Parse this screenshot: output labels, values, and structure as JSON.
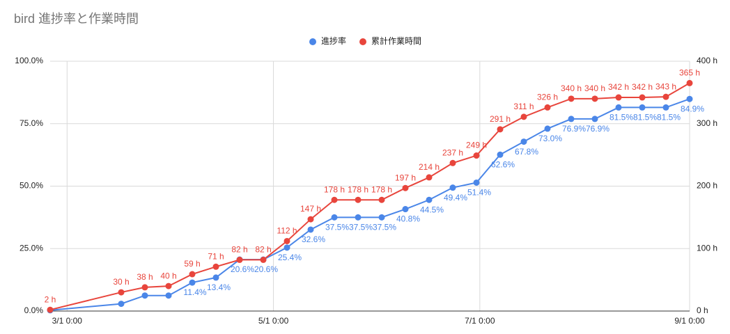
{
  "chart_data": {
    "type": "line",
    "title": "bird 進捗率と作業時間",
    "x": [
      "2/24",
      "3/17",
      "3/24",
      "3/31",
      "4/7",
      "4/14",
      "4/21",
      "4/28",
      "5/5",
      "5/12",
      "5/19",
      "5/26",
      "6/2",
      "6/9",
      "6/16",
      "6/23",
      "6/30",
      "7/7",
      "7/14",
      "7/21",
      "7/28",
      "8/4",
      "8/11",
      "8/18",
      "8/25",
      "9/1"
    ],
    "xlim": [
      "2/24",
      "9/1"
    ],
    "xticks": [
      "3/1 0:00",
      "5/1 0:00",
      "7/1 0:00",
      "9/1 0:00"
    ],
    "series": [
      {
        "name": "進捗率",
        "color": "#4a86e8",
        "axis": "y",
        "values": [
          0.3,
          2.9,
          6.2,
          6.2,
          11.4,
          13.4,
          20.6,
          20.6,
          25.4,
          32.6,
          37.5,
          37.5,
          37.5,
          40.8,
          44.5,
          49.4,
          51.4,
          62.6,
          67.8,
          73.0,
          76.9,
          76.9,
          81.5,
          81.5,
          81.5,
          84.9
        ],
        "value_labels": [
          null,
          null,
          null,
          null,
          "11.4%",
          "13.4%",
          "20.6%",
          "20.6%",
          "25.4%",
          "32.6%",
          "37.5%",
          "37.5%",
          "37.5%",
          "40.8%",
          "44.5%",
          "49.4%",
          "51.4%",
          "62.6%",
          "67.8%",
          "73.0%",
          "76.9%",
          "76.9%",
          "81.5%",
          "81.5%",
          "81.5%",
          "84.9%"
        ]
      },
      {
        "name": "累計作業時間",
        "color": "#e8453c",
        "axis": "y2",
        "values": [
          2,
          30,
          38,
          40,
          59,
          71,
          82,
          82,
          112,
          147,
          178,
          178,
          178,
          197,
          214,
          237,
          249,
          291,
          311,
          326,
          340,
          340,
          342,
          342,
          343,
          365
        ],
        "value_labels": [
          "2 h",
          "30 h",
          "38 h",
          "40 h",
          "59 h",
          "71 h",
          "82 h",
          "82 h",
          "112 h",
          "147 h",
          "178 h",
          "178 h",
          "178 h",
          "197 h",
          "214 h",
          "237 h",
          "249 h",
          "291 h",
          "311 h",
          "326 h",
          "340 h",
          "340 h",
          "342 h",
          "342 h",
          "343 h",
          "365 h"
        ]
      }
    ],
    "ylim": [
      0,
      100
    ],
    "yticks": [
      {
        "value": 0,
        "label": "0.0%"
      },
      {
        "value": 25,
        "label": "25.0%"
      },
      {
        "value": 50,
        "label": "50.0%"
      },
      {
        "value": 75,
        "label": "75.0%"
      },
      {
        "value": 100,
        "label": "100.0%"
      }
    ],
    "y2lim": [
      0,
      400
    ],
    "y2ticks": [
      {
        "value": 0,
        "label": "0 h"
      },
      {
        "value": 100,
        "label": "100 h"
      },
      {
        "value": 200,
        "label": "200 h"
      },
      {
        "value": 300,
        "label": "300 h"
      },
      {
        "value": 400,
        "label": "400 h"
      }
    ],
    "grid": true,
    "legend": "top"
  }
}
